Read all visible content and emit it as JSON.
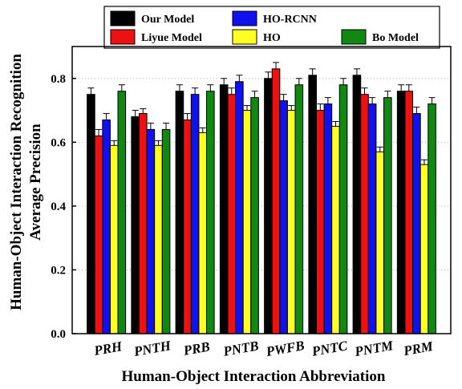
{
  "chart_data": {
    "type": "bar",
    "title": "",
    "xlabel": "Human-Object Interaction Abbreviation",
    "ylabel": [
      "Human-Object Interaction Recognition",
      "Average Precision"
    ],
    "ylim": [
      0,
      0.9
    ],
    "yticks": [
      "0.0",
      "0.2",
      "0.4",
      "0.6",
      "0.8"
    ],
    "grid": "horizontal dotted",
    "legend_position": "top",
    "categories": [
      "PRH",
      "PNTH",
      "PRB",
      "PNTB",
      "PWFB",
      "PNTC",
      "PNTM",
      "PRM"
    ],
    "series": [
      {
        "name": "Our Model",
        "color": "#000000",
        "values": [
          0.75,
          0.68,
          0.76,
          0.78,
          0.8,
          0.81,
          0.81,
          0.76
        ],
        "errors": [
          0.02,
          0.02,
          0.02,
          0.02,
          0.02,
          0.02,
          0.02,
          0.02
        ]
      },
      {
        "name": "Liyue Model",
        "color": "#ee1111",
        "values": [
          0.62,
          0.69,
          0.67,
          0.75,
          0.83,
          0.7,
          0.75,
          0.76
        ],
        "errors": [
          0.02,
          0.015,
          0.02,
          0.02,
          0.02,
          0.02,
          0.02,
          0.02
        ]
      },
      {
        "name": "HO-RCNN",
        "color": "#1111ee",
        "values": [
          0.67,
          0.64,
          0.75,
          0.79,
          0.73,
          0.72,
          0.72,
          0.69
        ],
        "errors": [
          0.02,
          0.02,
          0.02,
          0.02,
          0.02,
          0.02,
          0.02,
          0.02
        ]
      },
      {
        "name": "HO",
        "color": "#ffff22",
        "values": [
          0.59,
          0.59,
          0.63,
          0.7,
          0.7,
          0.65,
          0.57,
          0.53
        ],
        "errors": [
          0.015,
          0.015,
          0.015,
          0.015,
          0.015,
          0.015,
          0.015,
          0.015
        ]
      },
      {
        "name": "Bo Model",
        "color": "#118811",
        "values": [
          0.76,
          0.64,
          0.76,
          0.74,
          0.78,
          0.78,
          0.74,
          0.72
        ],
        "errors": [
          0.02,
          0.02,
          0.02,
          0.02,
          0.02,
          0.02,
          0.02,
          0.02
        ]
      }
    ]
  }
}
